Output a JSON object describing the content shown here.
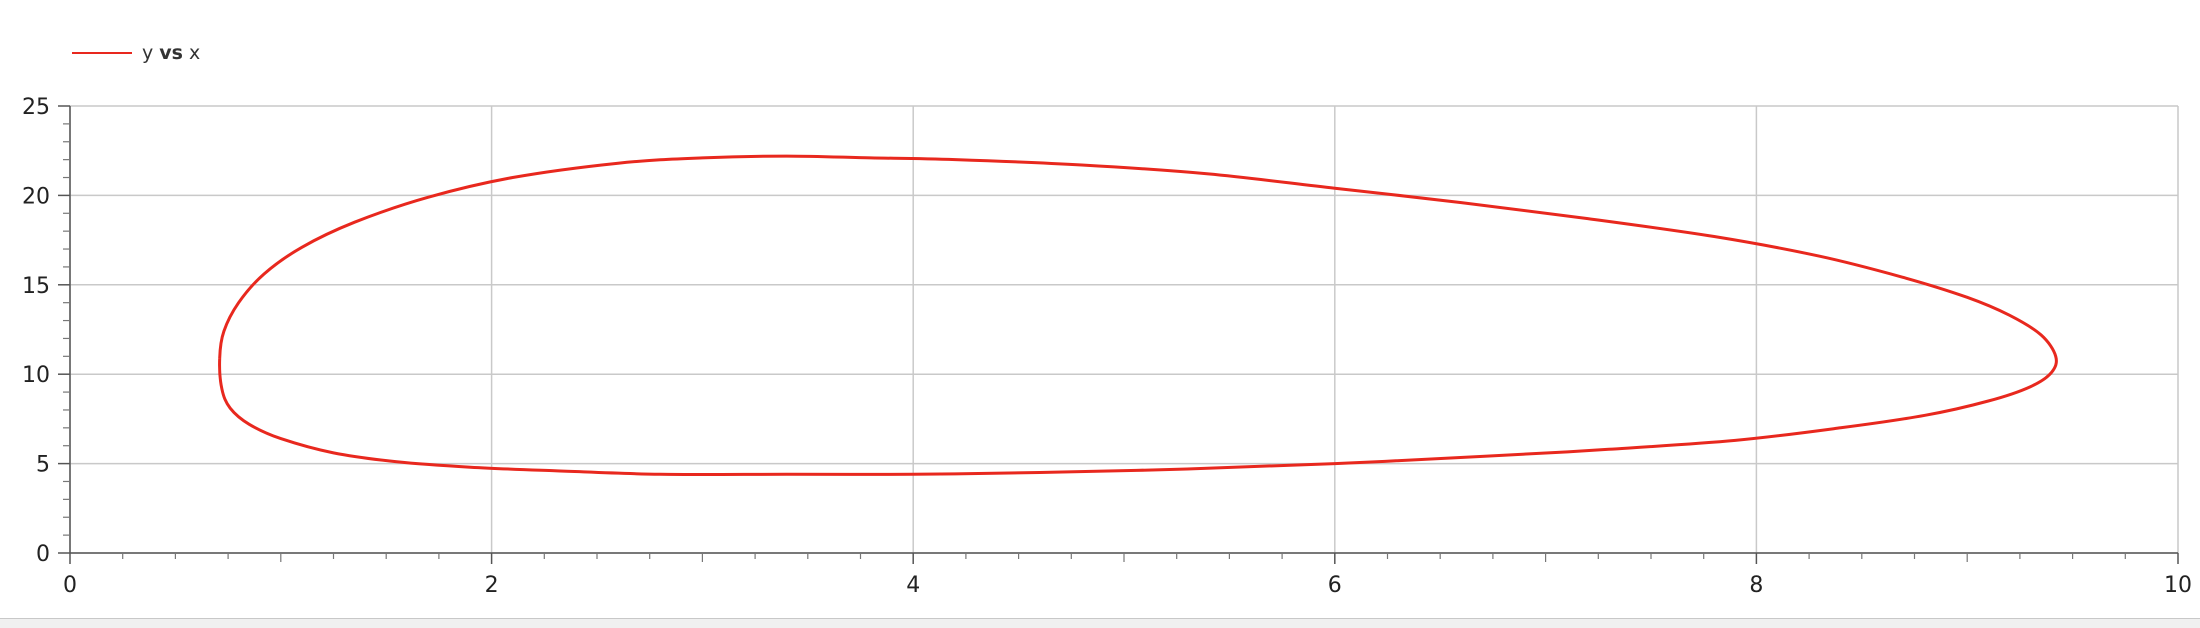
{
  "legend": {
    "part1": "y ",
    "bold": "vs",
    "part2": " x"
  },
  "chart_data": {
    "type": "line",
    "title": "",
    "xlabel": "",
    "ylabel": "",
    "xlim": [
      0,
      10
    ],
    "ylim": [
      0,
      25
    ],
    "x_ticks": [
      "0",
      "2",
      "4",
      "6",
      "8",
      "10"
    ],
    "y_ticks": [
      "0",
      "5",
      "10",
      "15",
      "20",
      "25"
    ],
    "grid": true,
    "legend_position": "top-left",
    "series": [
      {
        "name": "y vs x",
        "color": "#e8281e",
        "x": [
          0.71,
          0.73,
          0.8,
          0.92,
          1.1,
          1.35,
          1.7,
          2.1,
          2.6,
          3.0,
          3.4,
          3.8,
          4.2,
          4.8,
          5.4,
          6.0,
          6.6,
          7.2,
          7.8,
          8.3,
          8.7,
          9.0,
          9.2,
          9.35,
          9.42,
          9.4,
          9.3,
          9.1,
          8.8,
          8.4,
          7.9,
          7.3,
          6.7,
          6.0,
          5.3,
          4.6,
          4.0,
          3.4,
          2.8,
          2.3,
          1.9,
          1.55,
          1.25,
          1.0,
          0.85,
          0.76,
          0.72,
          0.71
        ],
        "y": [
          10.9,
          12.4,
          14.0,
          15.6,
          17.1,
          18.5,
          19.9,
          21.0,
          21.8,
          22.1,
          22.2,
          22.1,
          22.0,
          21.7,
          21.2,
          20.4,
          19.6,
          18.7,
          17.7,
          16.6,
          15.4,
          14.3,
          13.3,
          12.2,
          11.0,
          10.1,
          9.3,
          8.5,
          7.7,
          7.0,
          6.3,
          5.8,
          5.4,
          5.0,
          4.7,
          4.5,
          4.4,
          4.4,
          4.4,
          4.6,
          4.8,
          5.1,
          5.6,
          6.4,
          7.2,
          8.1,
          9.2,
          10.9
        ]
      }
    ]
  }
}
